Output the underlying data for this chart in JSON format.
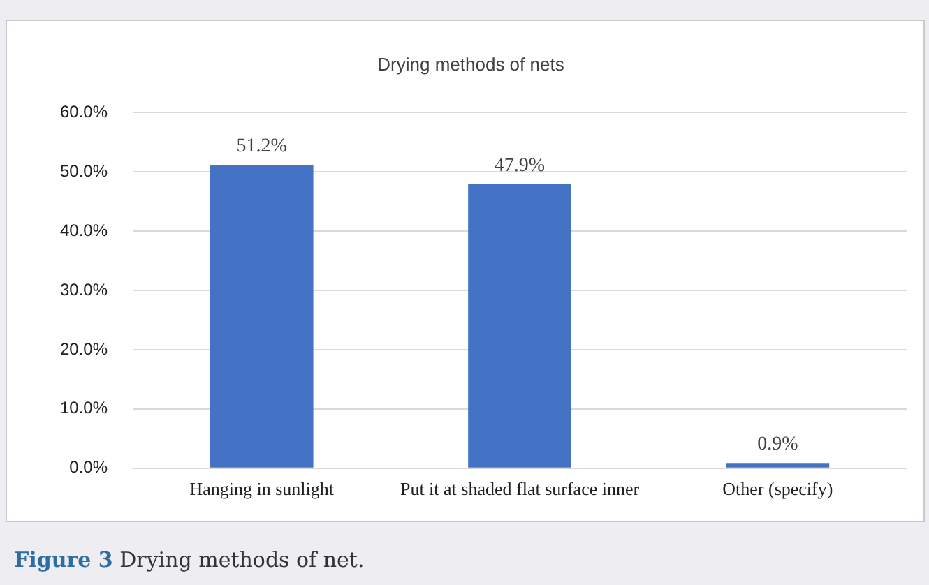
{
  "chart_data": {
    "type": "bar",
    "title": "Drying methods of nets",
    "categories": [
      "Hanging in sunlight",
      "Put it at shaded flat surface inner",
      "Other (specify)"
    ],
    "values": [
      51.2,
      47.9,
      0.9
    ],
    "color": "#4472c4",
    "value_labels": [
      "51.2%",
      "47.9%",
      "0.9%"
    ],
    "ylim": [
      0,
      60
    ],
    "yticks": [
      {
        "value": 0,
        "label": "0.0%"
      },
      {
        "value": 10,
        "label": "10.0%"
      },
      {
        "value": 20,
        "label": "20.0%"
      },
      {
        "value": 30,
        "label": "30.0%"
      },
      {
        "value": 40,
        "label": "40.0%"
      },
      {
        "value": 50,
        "label": "50.0%"
      },
      {
        "value": 60,
        "label": "60.0%"
      }
    ],
    "grid": "y",
    "annotations": [
      "Figure 3 Drying methods of net."
    ]
  }
}
